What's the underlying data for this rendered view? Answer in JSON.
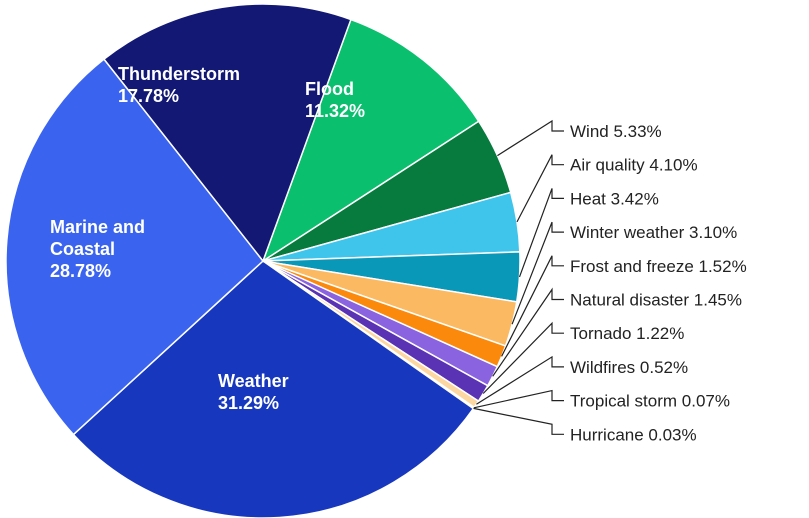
{
  "chart_data": {
    "type": "pie",
    "title": "",
    "slices": [
      {
        "label": "Flood",
        "value": 11.32,
        "color": "#0ABF6E",
        "label_position": "inside"
      },
      {
        "label": "Wind",
        "value": 5.33,
        "color": "#077A3E",
        "label_position": "outside"
      },
      {
        "label": "Air quality",
        "value": 4.1,
        "color": "#3FC5EC",
        "label_position": "outside"
      },
      {
        "label": "Heat",
        "value": 3.42,
        "color": "#0A98B8",
        "label_position": "outside"
      },
      {
        "label": "Winter weather",
        "value": 3.1,
        "color": "#FBB962",
        "label_position": "outside"
      },
      {
        "label": "Frost and freeze",
        "value": 1.52,
        "color": "#FB8A0C",
        "label_position": "outside"
      },
      {
        "label": "Natural disaster",
        "value": 1.45,
        "color": "#8A63E1",
        "label_position": "outside"
      },
      {
        "label": "Tornado",
        "value": 1.22,
        "color": "#5A32B4",
        "label_position": "outside"
      },
      {
        "label": "Wildfires",
        "value": 0.52,
        "color": "#FCD7A2",
        "label_position": "outside"
      },
      {
        "label": "Tropical storm",
        "value": 0.07,
        "color": "#F6662A",
        "label_position": "outside"
      },
      {
        "label": "Hurricane",
        "value": 0.03,
        "color": "#E23A2A",
        "label_position": "outside"
      },
      {
        "label": "Weather",
        "value": 31.29,
        "color": "#1637BE",
        "label_position": "inside"
      },
      {
        "label": "Marine and Coastal",
        "value": 28.78,
        "color": "#3A63F0",
        "label_position": "inside"
      },
      {
        "label": "Thunderstorm",
        "value": 17.78,
        "color": "#121873",
        "label_position": "inside"
      }
    ]
  }
}
